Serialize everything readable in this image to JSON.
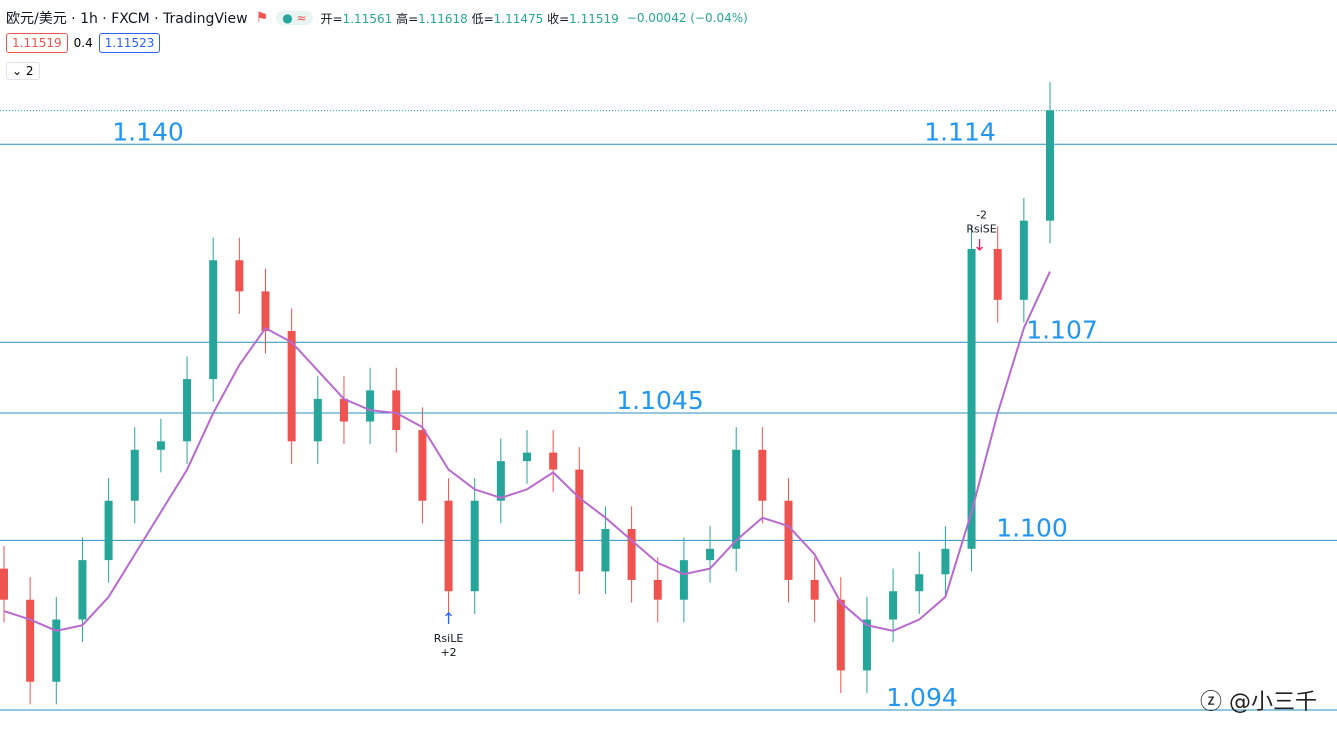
{
  "header": {
    "symbol": "欧元/美元 · 1h · FXCM · TradingView",
    "ohlc": [
      {
        "label": "开=",
        "value": "1.11561"
      },
      {
        "label": "高=",
        "value": "1.11618"
      },
      {
        "label": "低=",
        "value": "1.11475"
      },
      {
        "label": "收=",
        "value": "1.11519"
      }
    ],
    "change": "−0.00042 (−0.04%)",
    "sell_price": "1.11519",
    "spread": "0.4",
    "buy_price": "1.11523",
    "indicator_count": "2"
  },
  "watermark": "@小三千",
  "chart_data": {
    "type": "candlestick",
    "ylim": [
      1.0928,
      1.1191
    ],
    "up_color": "#26a69a",
    "down_color": "#ef5350",
    "ma_color": "#b86ad0",
    "level_color": "#2a8fc4",
    "last_close": 1.11519,
    "candles": [
      {
        "o": 1.099,
        "h": 1.0998,
        "l": 1.0971,
        "c": 1.0979
      },
      {
        "o": 1.0979,
        "h": 1.0987,
        "l": 1.0942,
        "c": 1.095
      },
      {
        "o": 1.095,
        "h": 1.098,
        "l": 1.0942,
        "c": 1.0972
      },
      {
        "o": 1.0972,
        "h": 1.1001,
        "l": 1.0964,
        "c": 1.0993
      },
      {
        "o": 1.0993,
        "h": 1.1022,
        "l": 1.0985,
        "c": 1.1014
      },
      {
        "o": 1.1014,
        "h": 1.104,
        "l": 1.1006,
        "c": 1.1032
      },
      {
        "o": 1.1032,
        "h": 1.1043,
        "l": 1.1024,
        "c": 1.1035
      },
      {
        "o": 1.1035,
        "h": 1.1065,
        "l": 1.1027,
        "c": 1.1057
      },
      {
        "o": 1.1057,
        "h": 1.1107,
        "l": 1.1049,
        "c": 1.1099
      },
      {
        "o": 1.1099,
        "h": 1.1107,
        "l": 1.108,
        "c": 1.1088
      },
      {
        "o": 1.1088,
        "h": 1.1096,
        "l": 1.1066,
        "c": 1.1074
      },
      {
        "o": 1.1074,
        "h": 1.1082,
        "l": 1.1027,
        "c": 1.1035
      },
      {
        "o": 1.1035,
        "h": 1.1058,
        "l": 1.1027,
        "c": 1.105
      },
      {
        "o": 1.105,
        "h": 1.1058,
        "l": 1.1034,
        "c": 1.1042
      },
      {
        "o": 1.1042,
        "h": 1.1061,
        "l": 1.1034,
        "c": 1.1053
      },
      {
        "o": 1.1053,
        "h": 1.1061,
        "l": 1.1031,
        "c": 1.1039
      },
      {
        "o": 1.1039,
        "h": 1.1047,
        "l": 1.1006,
        "c": 1.1014
      },
      {
        "o": 1.1014,
        "h": 1.1022,
        "l": 1.0974,
        "c": 1.0982
      },
      {
        "o": 1.0982,
        "h": 1.1022,
        "l": 1.0974,
        "c": 1.1014
      },
      {
        "o": 1.1014,
        "h": 1.1036,
        "l": 1.1006,
        "c": 1.1028
      },
      {
        "o": 1.1028,
        "h": 1.1039,
        "l": 1.102,
        "c": 1.1031
      },
      {
        "o": 1.1031,
        "h": 1.1039,
        "l": 1.1017,
        "c": 1.1025
      },
      {
        "o": 1.1025,
        "h": 1.1033,
        "l": 1.0981,
        "c": 1.0989
      },
      {
        "o": 1.0989,
        "h": 1.1012,
        "l": 1.0981,
        "c": 1.1004
      },
      {
        "o": 1.1004,
        "h": 1.1012,
        "l": 1.0978,
        "c": 1.0986
      },
      {
        "o": 1.0986,
        "h": 1.0994,
        "l": 1.0971,
        "c": 1.0979
      },
      {
        "o": 1.0979,
        "h": 1.1001,
        "l": 1.0971,
        "c": 1.0993
      },
      {
        "o": 1.0993,
        "h": 1.1005,
        "l": 1.0985,
        "c": 1.0997
      },
      {
        "o": 1.0997,
        "h": 1.104,
        "l": 1.0989,
        "c": 1.1032
      },
      {
        "o": 1.1032,
        "h": 1.104,
        "l": 1.1006,
        "c": 1.1014
      },
      {
        "o": 1.1014,
        "h": 1.1022,
        "l": 1.0978,
        "c": 1.0986
      },
      {
        "o": 1.0986,
        "h": 1.0994,
        "l": 1.0971,
        "c": 1.0979
      },
      {
        "o": 1.0979,
        "h": 1.0987,
        "l": 1.0946,
        "c": 1.0954
      },
      {
        "o": 1.0954,
        "h": 1.098,
        "l": 1.0946,
        "c": 1.0972
      },
      {
        "o": 1.0972,
        "h": 1.099,
        "l": 1.0964,
        "c": 1.0982
      },
      {
        "o": 1.0982,
        "h": 1.0996,
        "l": 1.0974,
        "c": 1.0988
      },
      {
        "o": 1.0988,
        "h": 1.1005,
        "l": 1.098,
        "c": 1.0997
      },
      {
        "o": 1.0997,
        "h": 1.1111,
        "l": 1.0989,
        "c": 1.1103
      },
      {
        "o": 1.1103,
        "h": 1.1111,
        "l": 1.1077,
        "c": 1.1085
      },
      {
        "o": 1.1085,
        "h": 1.1121,
        "l": 1.1077,
        "c": 1.1113
      },
      {
        "o": 1.1113,
        "h": 1.1162,
        "l": 1.1105,
        "c": 1.1152
      }
    ],
    "ma": [
      1.0975,
      1.0972,
      1.0968,
      1.097,
      1.098,
      1.0995,
      1.101,
      1.1025,
      1.1045,
      1.1062,
      1.1075,
      1.107,
      1.106,
      1.105,
      1.1046,
      1.1045,
      1.104,
      1.1025,
      1.1018,
      1.1015,
      1.1018,
      1.1024,
      1.1015,
      1.1008,
      1.1,
      1.0992,
      1.0988,
      1.099,
      1.1,
      1.1008,
      1.1005,
      1.0995,
      1.0978,
      1.097,
      1.0968,
      1.0972,
      1.098,
      1.101,
      1.1045,
      1.1075,
      1.1095
    ],
    "levels": [
      {
        "value": 1.114,
        "label": "1.114"
      },
      {
        "value": 1.107,
        "label": "1.107"
      },
      {
        "value": 1.1045,
        "label": "1.1045"
      },
      {
        "value": 1.1,
        "label": "1.100"
      },
      {
        "value": 1.094,
        "label": "1.094"
      }
    ],
    "annotations": [
      "1.140"
    ],
    "signals": [
      {
        "candle": 17,
        "name": "RsiLE",
        "qty": "+2",
        "side": "long"
      },
      {
        "candle": 37,
        "name": "RsiSE",
        "qty": "-2",
        "side": "short"
      }
    ]
  }
}
